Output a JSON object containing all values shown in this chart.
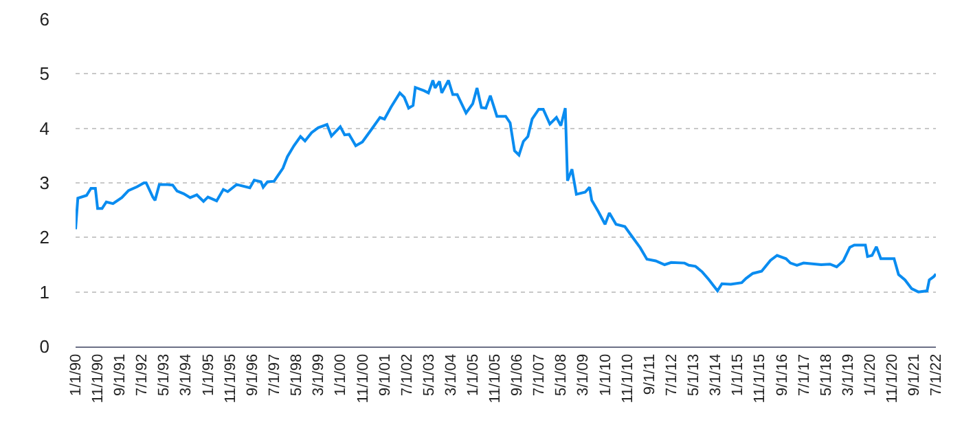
{
  "chart_data": {
    "type": "line",
    "x": [
      "1990-01",
      "1990-02",
      "1990-06",
      "1990-08",
      "1990-10",
      "1990-11",
      "1991-01",
      "1991-03",
      "1991-06",
      "1991-10",
      "1992-01",
      "1992-05",
      "1992-08",
      "1992-09",
      "1992-12",
      "1993-01",
      "1993-03",
      "1993-06",
      "1993-09",
      "1993-11",
      "1994-02",
      "1994-05",
      "1994-08",
      "1994-11",
      "1995-01",
      "1995-05",
      "1995-08",
      "1995-10",
      "1996-02",
      "1996-08",
      "1996-10",
      "1997-01",
      "1997-02",
      "1997-04",
      "1997-07",
      "1997-11",
      "1998-01",
      "1998-04",
      "1998-07",
      "1998-09",
      "1998-12",
      "1999-03",
      "1999-07",
      "1999-09",
      "2000-01",
      "2000-03",
      "2000-05",
      "2000-08",
      "2000-11",
      "2001-03",
      "2001-07",
      "2001-09",
      "2001-12",
      "2002-04",
      "2002-06",
      "2002-08",
      "2002-10",
      "2002-11",
      "2003-03",
      "2003-05",
      "2003-07",
      "2003-08",
      "2003-10",
      "2003-11",
      "2004-02",
      "2004-04",
      "2004-06",
      "2004-10",
      "2005-01",
      "2005-03",
      "2005-05",
      "2005-07",
      "2005-09",
      "2005-12",
      "2006-04",
      "2006-06",
      "2006-08",
      "2006-10",
      "2006-12",
      "2007-02",
      "2007-04",
      "2007-07",
      "2007-09",
      "2007-12",
      "2008-03",
      "2008-05",
      "2008-07",
      "2008-08",
      "2008-10",
      "2008-12",
      "2009-04",
      "2009-06",
      "2009-07",
      "2009-10",
      "2010-01",
      "2010-03",
      "2010-06",
      "2010-10",
      "2011-01",
      "2011-05",
      "2011-08",
      "2011-12",
      "2012-04",
      "2012-07",
      "2013-01",
      "2013-03",
      "2013-06",
      "2013-09",
      "2013-12",
      "2014-04",
      "2014-06",
      "2014-10",
      "2015-03",
      "2015-05",
      "2015-08",
      "2015-12",
      "2016-04",
      "2016-07",
      "2016-11",
      "2017-01",
      "2017-04",
      "2017-07",
      "2018-03",
      "2018-07",
      "2018-10",
      "2019-01",
      "2019-04",
      "2019-06",
      "2019-11",
      "2019-12",
      "2020-02",
      "2020-04",
      "2020-06",
      "2020-12",
      "2021-02",
      "2021-05",
      "2021-08",
      "2021-11",
      "2022-03",
      "2022-04",
      "2022-06",
      "2022-07"
    ],
    "series": [
      {
        "color": "#0a8cf0",
        "values": [
          2.15,
          2.72,
          2.77,
          2.9,
          2.9,
          2.53,
          2.53,
          2.65,
          2.62,
          2.73,
          2.86,
          2.93,
          3.0,
          3.0,
          2.74,
          2.68,
          2.97,
          2.97,
          2.96,
          2.85,
          2.8,
          2.73,
          2.78,
          2.66,
          2.74,
          2.67,
          2.88,
          2.84,
          2.97,
          2.91,
          3.05,
          3.02,
          2.92,
          3.02,
          3.03,
          3.27,
          3.48,
          3.68,
          3.85,
          3.77,
          3.92,
          4.01,
          4.07,
          3.86,
          4.03,
          3.88,
          3.89,
          3.68,
          3.75,
          3.97,
          4.2,
          4.17,
          4.39,
          4.65,
          4.57,
          4.37,
          4.42,
          4.75,
          4.69,
          4.65,
          4.88,
          4.74,
          4.86,
          4.65,
          4.88,
          4.62,
          4.62,
          4.28,
          4.45,
          4.74,
          4.38,
          4.37,
          4.6,
          4.22,
          4.22,
          4.1,
          3.59,
          3.51,
          3.76,
          3.85,
          4.17,
          4.35,
          4.35,
          4.08,
          4.2,
          4.05,
          4.37,
          3.04,
          3.25,
          2.79,
          2.83,
          2.92,
          2.68,
          2.47,
          2.24,
          2.45,
          2.24,
          2.2,
          2.03,
          1.81,
          1.6,
          1.57,
          1.5,
          1.54,
          1.53,
          1.49,
          1.47,
          1.37,
          1.23,
          1.02,
          1.15,
          1.14,
          1.17,
          1.25,
          1.34,
          1.38,
          1.58,
          1.67,
          1.61,
          1.53,
          1.49,
          1.53,
          1.5,
          1.51,
          1.46,
          1.57,
          1.82,
          1.86,
          1.86,
          1.65,
          1.67,
          1.83,
          1.61,
          1.61,
          1.32,
          1.22,
          1.06,
          1.0,
          1.02,
          1.22,
          1.28,
          1.33
        ]
      }
    ],
    "xlim": [
      "1990-01-01",
      "2022-07-01"
    ],
    "xticks": [
      {
        "value": "1990-01-01",
        "label": "1/1/90"
      },
      {
        "value": "1990-11-01",
        "label": "11/1/90"
      },
      {
        "value": "1991-09-01",
        "label": "9/1/91"
      },
      {
        "value": "1992-07-01",
        "label": "7/1/92"
      },
      {
        "value": "1993-05-01",
        "label": "5/1/93"
      },
      {
        "value": "1994-03-01",
        "label": "3/1/94"
      },
      {
        "value": "1995-01-01",
        "label": "1/1/95"
      },
      {
        "value": "1995-11-01",
        "label": "11/1/95"
      },
      {
        "value": "1996-09-01",
        "label": "9/1/96"
      },
      {
        "value": "1997-07-01",
        "label": "7/1/97"
      },
      {
        "value": "1998-05-01",
        "label": "5/1/98"
      },
      {
        "value": "1999-03-01",
        "label": "3/1/99"
      },
      {
        "value": "2000-01-01",
        "label": "1/1/00"
      },
      {
        "value": "2000-11-01",
        "label": "11/1/00"
      },
      {
        "value": "2001-09-01",
        "label": "9/1/01"
      },
      {
        "value": "2002-07-01",
        "label": "7/1/02"
      },
      {
        "value": "2003-05-01",
        "label": "5/1/03"
      },
      {
        "value": "2004-03-01",
        "label": "3/1/04"
      },
      {
        "value": "2005-01-01",
        "label": "1/1/05"
      },
      {
        "value": "2005-11-01",
        "label": "11/1/05"
      },
      {
        "value": "2006-09-01",
        "label": "9/1/06"
      },
      {
        "value": "2007-07-01",
        "label": "7/1/07"
      },
      {
        "value": "2008-05-01",
        "label": "5/1/08"
      },
      {
        "value": "2009-03-01",
        "label": "3/1/09"
      },
      {
        "value": "2010-01-01",
        "label": "1/1/10"
      },
      {
        "value": "2010-11-01",
        "label": "11/1/10"
      },
      {
        "value": "2011-09-01",
        "label": "9/1/11"
      },
      {
        "value": "2012-07-01",
        "label": "7/1/12"
      },
      {
        "value": "2013-05-01",
        "label": "5/1/13"
      },
      {
        "value": "2014-03-01",
        "label": "3/1/14"
      },
      {
        "value": "2015-01-01",
        "label": "1/1/15"
      },
      {
        "value": "2015-11-01",
        "label": "11/1/15"
      },
      {
        "value": "2016-09-01",
        "label": "9/1/16"
      },
      {
        "value": "2017-07-01",
        "label": "7/1/17"
      },
      {
        "value": "2018-05-01",
        "label": "5/1/18"
      },
      {
        "value": "2019-03-01",
        "label": "3/1/19"
      },
      {
        "value": "2020-01-01",
        "label": "1/1/20"
      },
      {
        "value": "2020-11-01",
        "label": "11/1/20"
      },
      {
        "value": "2021-09-01",
        "label": "9/1/21"
      },
      {
        "value": "2022-07-01",
        "label": "7/1/22"
      }
    ],
    "ylim": [
      0,
      6
    ],
    "yticks": [
      0,
      1,
      2,
      3,
      4,
      5,
      6
    ],
    "grid": "y"
  }
}
